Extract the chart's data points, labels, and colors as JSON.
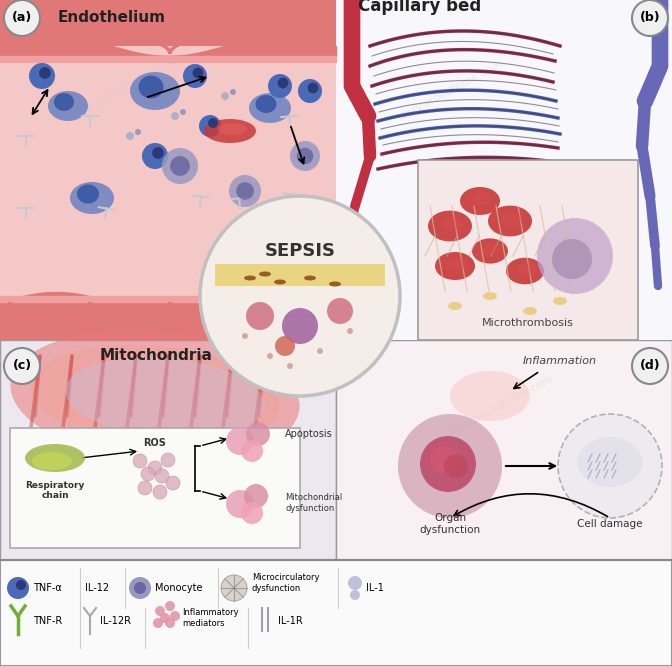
{
  "fig_width": 6.72,
  "fig_height": 6.66,
  "dpi": 100,
  "bg_color": "#ffffff",
  "panel_a_label": "(a)",
  "panel_b_label": "(b)",
  "panel_c_label": "(c)",
  "panel_d_label": "(d)",
  "panel_a_title": "Endothelium",
  "panel_b_title": "Capillary bed",
  "panel_b_sub": "Microthrombosis",
  "panel_c_title": "Mitochondria",
  "sepsis_label": "SEPSIS",
  "inflammation_label": "Inflammation",
  "apoptosis_label": "Apoptosis",
  "resp_chain_label": "Respiratory\nchain",
  "ros_label": "ROS",
  "mito_dys_label": "Mitochondrial\ndysfunction",
  "organ_dys_label": "Organ\ndysfunction",
  "cell_damage_label": "Cell damage",
  "watermark_text": "story.aroadtome.com",
  "panel_a_bg": "#f5c8c8",
  "panel_b_bg": "#f8f8ff",
  "panel_c_bg": "#f0e8f0",
  "panel_d_bg": "#f8f0f0",
  "border_color": "#999999",
  "endothelium_band_color": "#e07878",
  "endothelium_inner_color": "#f5b8b8",
  "capillary_red": "#c03040",
  "capillary_blue": "#6868b8",
  "capillary_dark": "#303060",
  "tnf_alpha_color": "#4a6ab8",
  "tnf_alpha_dark": "#2a3a78",
  "monocyte_color": "#9898c0",
  "monocyte_dark": "#6868a0",
  "red_cell_color": "#c83838",
  "mito_outer": "#e87878",
  "mito_inner": "#f0a090",
  "mito_cristae": "#d05050",
  "resp_chain_color": "#a0b848",
  "ros_color": "#d8a8b8",
  "ros_dot_color": "#c89090",
  "sepsis_circle_bg": "#f5eee8",
  "sepsis_yellow": "#e8d070",
  "sepsis_brown": "#8B5020",
  "sepsis_pink_cell": "#d07080",
  "sepsis_purple_cell": "#a060a0",
  "panel_c_legend_bg": "#fafaf8",
  "panel_c_apoptosis_pink": "#e8a0b0",
  "organ_circle_color": "#d0a0b0",
  "organ_inner_color": "#b84060",
  "cell_damage_color": "#c0c0d8",
  "label_circle_color": "#f0f0f0",
  "label_circle_edge": "#888888"
}
